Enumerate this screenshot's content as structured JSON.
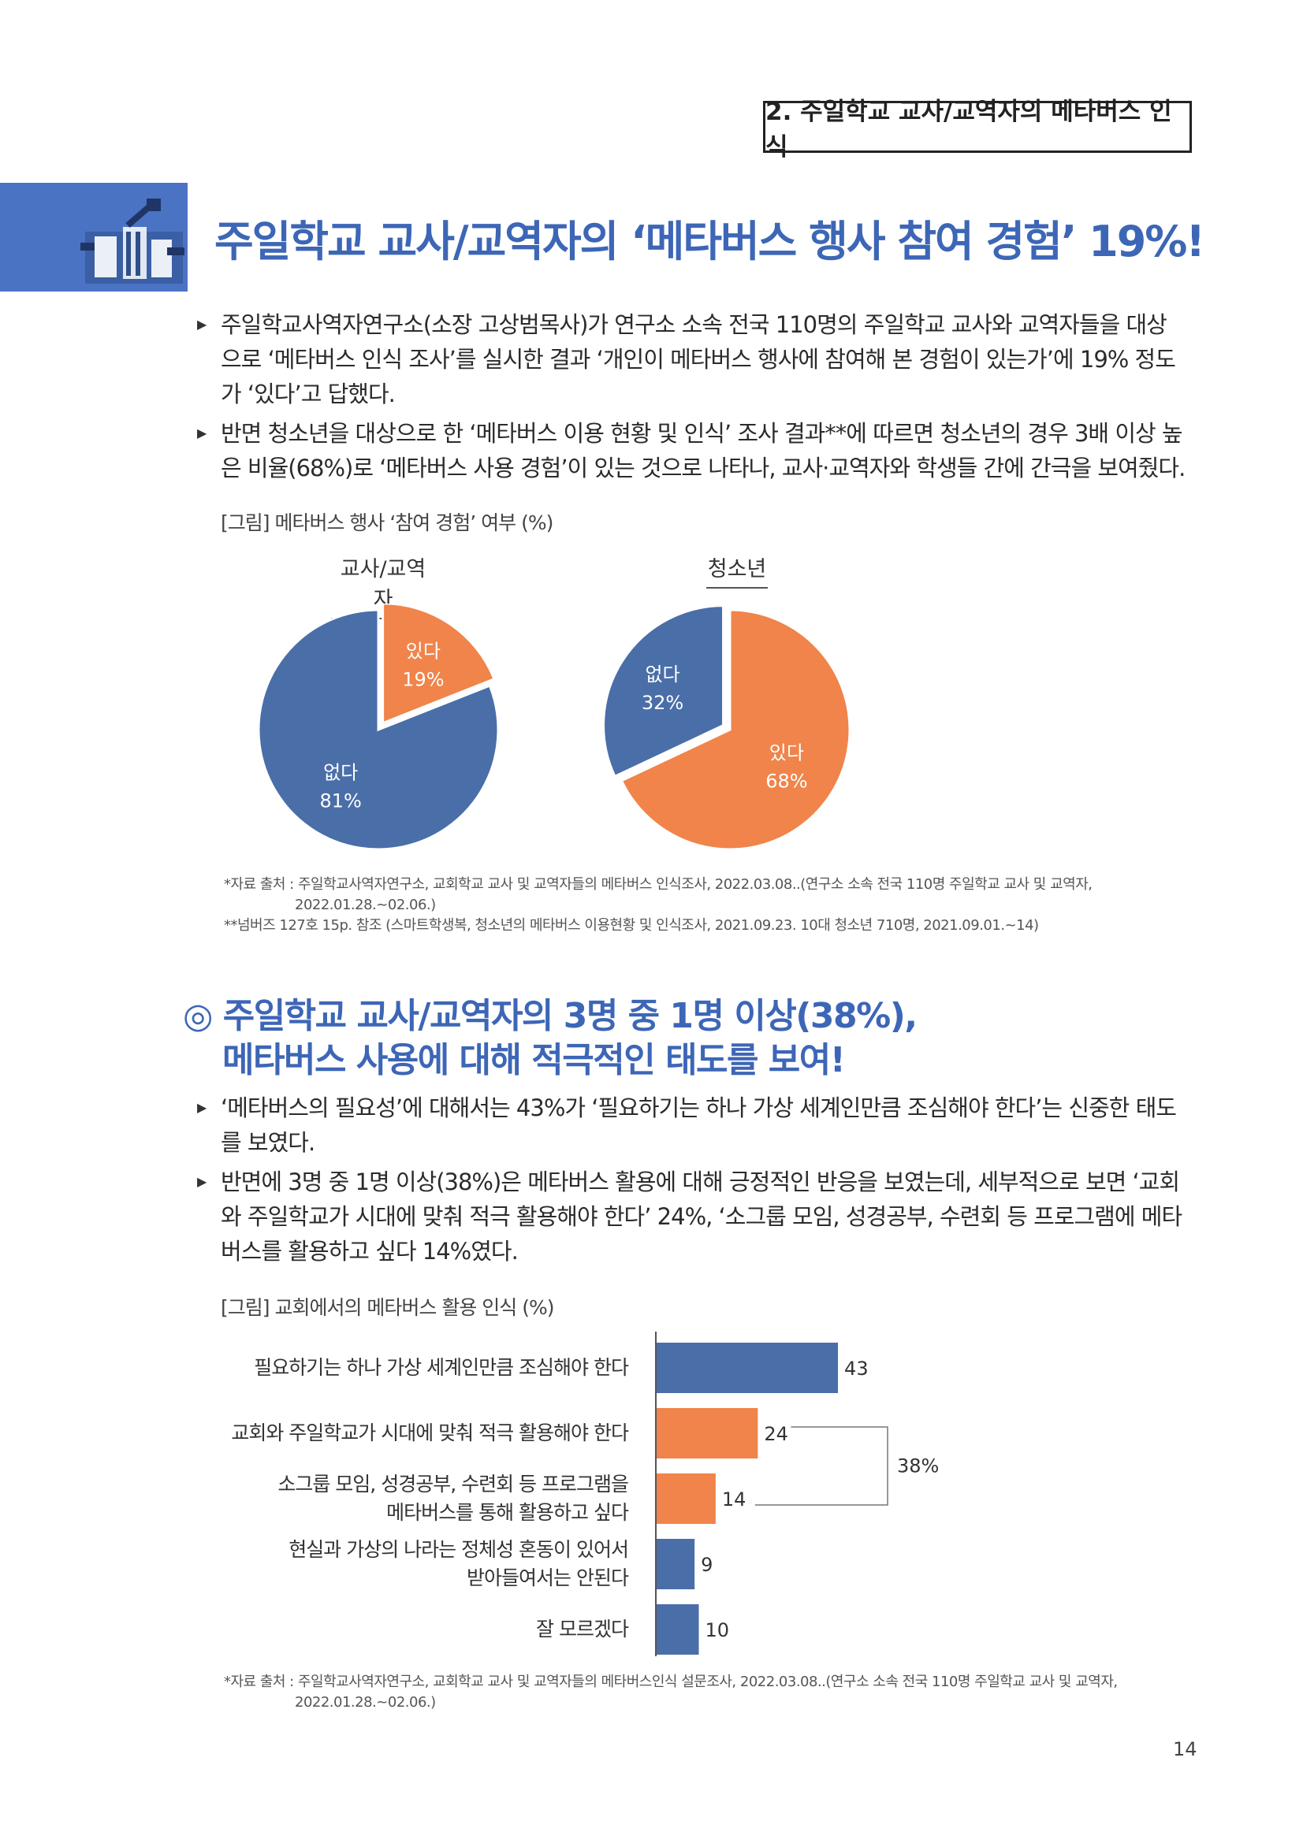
{
  "header": {
    "section_tag": "2. 주일학교 교사/교역자의 메타버스 인식"
  },
  "section1": {
    "title": "주일학교 교사/교역자의 ‘메타버스 행사 참여 경험’ 19%!",
    "bullet1": [
      "주일학교사역자연구소(소장 고상범목사)가 연구소 소속 전국 110명의 주일학교 교사와 교역자들을 대상",
      "으로 ‘메타버스 인식 조사’를 실시한 결과 ‘개인이 메타버스 행사에 참여해 본 경험이 있는가’에 19% 정도",
      "가 ‘있다’고 답했다."
    ],
    "bullet2": [
      "반면 청소년을 대상으로 한 ‘메타버스 이용 현황 및 인식’ 조사 결과**에 따르면 청소년의 경우 3배 이상 높",
      "은 비율(68%)로 ‘메타버스 사용 경험’이 있는 것으로 나타나, 교사·교역자와 학생들 간에 간극을 보여줬다."
    ],
    "figure_caption": "[그림] 메타버스 행사 ‘참여 경험’ 여부 (%)",
    "notes": [
      "*자료 출처 : 주일학교사역자연구소, 교회학교 교사 및 교역자들의 메타버스 인식조사, 2022.03.08..(연구소 소속 전국 110명 주일학교 교사 및 교역자,",
      "2022.01.28.~02.06.)",
      "**넘버즈 127호 15p. 참조 (스마트학생복, 청소년의 메타버스 이용현황 및 인식조사, 2021.09.23. 10대 청소년 710명, 2021.09.01.~14)"
    ]
  },
  "section2": {
    "title_line1": "◎ 주일학교 교사/교역자의 3명 중 1명 이상(38%),",
    "title_line2": "메타버스 사용에 대해 적극적인 태도를 보여!",
    "bullet1": [
      "‘메타버스의 필요성’에 대해서는 43%가 ‘필요하기는 하나 가상 세계인만큼 조심해야 한다’는 신중한 태도",
      "를 보였다."
    ],
    "bullet2": [
      "반면에 3명 중 1명 이상(38%)은 메타버스 활용에 대해 긍정적인 반응을 보였는데, 세부적으로 보면 ‘교회",
      "와 주일학교가 시대에 맞춰 적극 활용해야 한다’ 24%, ‘소그룹 모임, 성경공부, 수련회 등 프로그램에 메타",
      "버스를 활용하고 싶다 14%였다."
    ],
    "figure_caption": "[그림] 교회에서의 메타버스 활용 인식 (%)",
    "bracket_label": "38%",
    "notes": [
      "*자료 출처 : 주일학교사역자연구소, 교회학교 교사 및 교역자들의 메타버스인식 설문조사, 2022.03.08..(연구소 소속 전국 110명 주일학교 교사 및 교역자,",
      "2022.01.28.~02.06.)"
    ]
  },
  "colors": {
    "blue": "#4a6ea8",
    "orange": "#f0844a",
    "accent": "#3d66b6"
  },
  "chart_data": [
    {
      "type": "pie",
      "title": "교사/교역자",
      "slices": [
        {
          "label": "있다",
          "value": 19,
          "text": "19%",
          "color": "#f0844a"
        },
        {
          "label": "없다",
          "value": 81,
          "text": "81%",
          "color": "#4a6ea8"
        }
      ]
    },
    {
      "type": "pie",
      "title": "청소년",
      "slices": [
        {
          "label": "있다",
          "value": 68,
          "text": "68%",
          "color": "#f0844a"
        },
        {
          "label": "없다",
          "value": 32,
          "text": "32%",
          "color": "#4a6ea8"
        }
      ]
    },
    {
      "type": "bar",
      "orientation": "horizontal",
      "categories": [
        [
          "필요하기는 하나 가상 세계인만큼 조심해야 한다"
        ],
        [
          "교회와 주일학교가 시대에 맞춰 적극 활용해야 한다"
        ],
        [
          "소그룹 모임, 성경공부, 수련회 등 프로그램을",
          "메타버스를 통해 활용하고 싶다"
        ],
        [
          "현실과 가상의 나라는 정체성 혼동이 있어서",
          "받아들여서는 안된다"
        ],
        [
          "잘 모르겠다"
        ]
      ],
      "values": [
        43,
        24,
        14,
        9,
        10
      ],
      "colors": [
        "#4a6ea8",
        "#f0844a",
        "#f0844a",
        "#4a6ea8",
        "#4a6ea8"
      ]
    }
  ],
  "footer": {
    "page_number": "14"
  }
}
